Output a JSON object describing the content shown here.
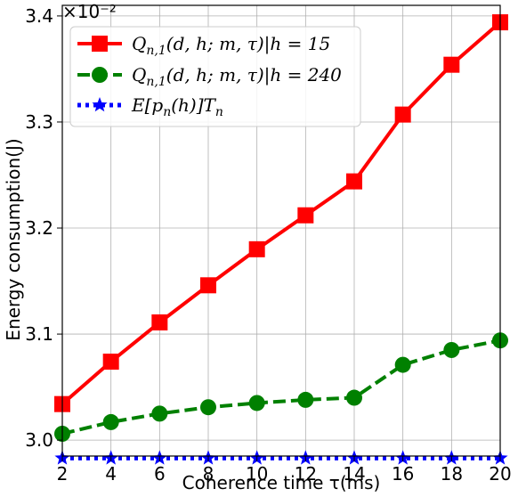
{
  "chart_data": {
    "type": "line",
    "xlabel": "Coherence time τ(ms)",
    "ylabel": "Energy consumption(J)",
    "y_scale_note": "×10⁻²",
    "xlim": [
      2,
      20
    ],
    "ylim": [
      2.985,
      3.41
    ],
    "x_ticks": [
      2,
      4,
      6,
      8,
      10,
      12,
      14,
      16,
      18,
      20
    ],
    "y_ticks": [
      3.0,
      3.1,
      3.2,
      3.3,
      3.4
    ],
    "y_tick_labels": [
      "3.0",
      "3.1",
      "3.2",
      "3.3",
      "3.4"
    ],
    "grid": true,
    "legend_position": "top-left",
    "x": [
      2,
      4,
      6,
      8,
      10,
      12,
      14,
      16,
      18,
      20
    ],
    "series": [
      {
        "name": "Q_{n,1}(d,h;m,τ)|h = 15",
        "color": "#ff0000",
        "marker": "square",
        "line_style": "solid",
        "values": [
          3.034,
          3.074,
          3.111,
          3.146,
          3.18,
          3.212,
          3.244,
          3.307,
          3.354,
          3.394
        ]
      },
      {
        "name": "Q_{n,1}(d,h;m,τ)|h = 240",
        "color": "#008000",
        "marker": "circle",
        "line_style": "dashed",
        "values": [
          3.006,
          3.017,
          3.025,
          3.031,
          3.035,
          3.038,
          3.04,
          3.071,
          3.085,
          3.094
        ]
      },
      {
        "name": "E[p_n(h)]T_n",
        "color": "#0000ff",
        "marker": "star",
        "line_style": "dotted",
        "values": [
          2.983,
          2.983,
          2.983,
          2.983,
          2.983,
          2.983,
          2.983,
          2.983,
          2.983,
          2.983
        ]
      }
    ]
  }
}
